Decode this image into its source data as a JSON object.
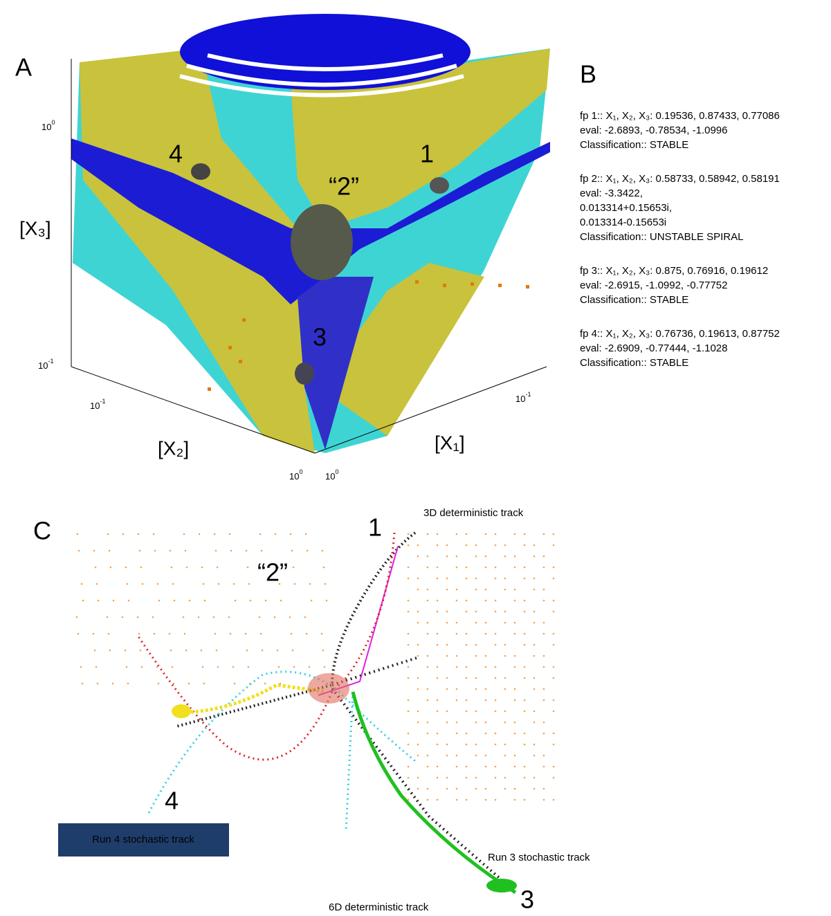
{
  "panel_a": {
    "label": "A",
    "z_ticks": [
      {
        "base": "10",
        "exp": "0"
      },
      {
        "base": "10",
        "exp": "-1"
      }
    ],
    "x2_ticks": [
      {
        "base": "10",
        "exp": "-1"
      },
      {
        "base": "10",
        "exp": "0"
      }
    ],
    "x1_ticks": [
      {
        "base": "10",
        "exp": "-1"
      },
      {
        "base": "10",
        "exp": "0"
      }
    ],
    "axis_labels": {
      "x3": "[X₃]",
      "x2": "[X₂]",
      "x1": "[X₁]"
    },
    "point_labels": [
      "4",
      "1",
      "“2”",
      "3"
    ]
  },
  "panel_b": {
    "label": "B",
    "fixed_points": [
      [
        "fp 1:: X₁, X₂, X₃: 0.19536, 0.87433, 0.77086",
        "eval: -2.6893, -0.78534, -1.0996",
        "Classification:: STABLE"
      ],
      [
        "fp 2:: X₁, X₂, X₃: 0.58733, 0.58942, 0.58191",
        "eval: -3.3422,",
        "0.013314+0.15653i,",
        "0.013314-0.15653i",
        "Classification:: UNSTABLE SPIRAL"
      ],
      [
        "fp 3:: X₁, X₂, X₃: 0.875, 0.76916, 0.19612",
        "eval: -2.6915, -1.0992, -0.77752",
        "Classification:: STABLE"
      ],
      [
        "fp 4:: X₁, X₂, X₃: 0.76736, 0.19613, 0.87752",
        "eval: -2.6909, -0.77444, -1.1028",
        "Classification:: STABLE"
      ]
    ]
  },
  "panel_c": {
    "label": "C",
    "point_labels": [
      "1",
      "“2”",
      "4",
      "3"
    ],
    "track_labels": {
      "det3d": "3D deterministic track",
      "run4": "Run 4 stochastic track",
      "run3": "Run 3 stochastic track",
      "det6d": "6D deterministic  track"
    }
  }
}
